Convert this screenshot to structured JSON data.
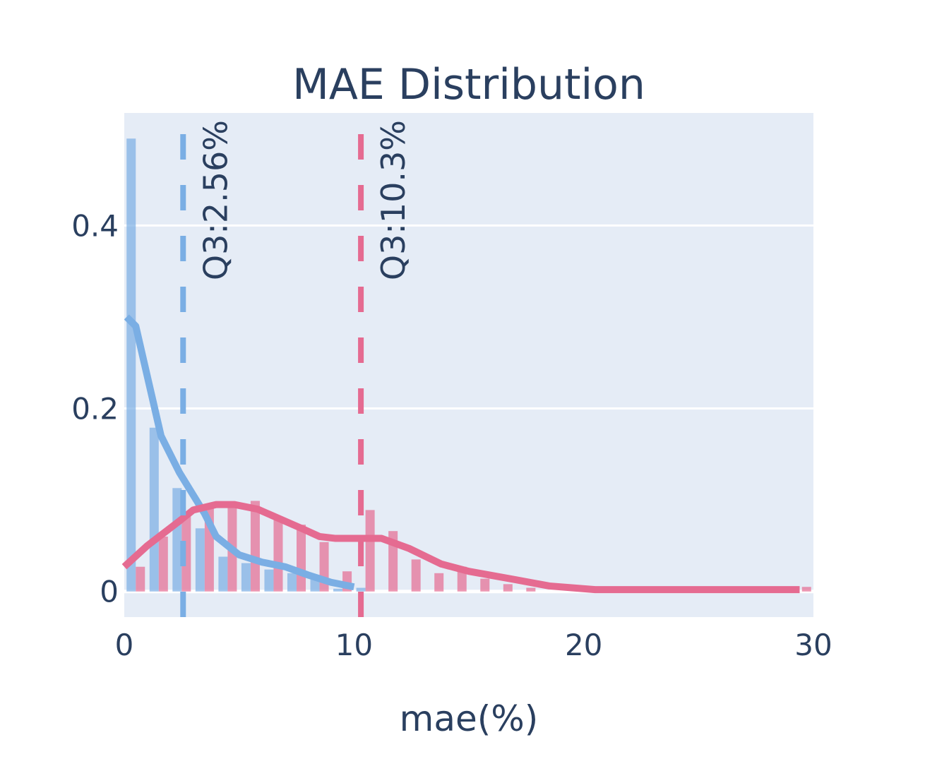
{
  "chart_data": {
    "type": "bar",
    "title": "MAE Distribution",
    "xlabel": "mae(%)",
    "ylabel": "",
    "xlim": [
      0,
      30
    ],
    "ylim": [
      -0.028,
      0.523
    ],
    "x_ticks": [
      0,
      10,
      20,
      30
    ],
    "y_ticks": [
      0,
      0.2,
      0.4
    ],
    "x_tick_labels": [
      "0",
      "10",
      "20",
      "30"
    ],
    "y_tick_labels": [
      "0",
      "0.2",
      "0.4"
    ],
    "grid": true,
    "bin_width": 1,
    "colors": {
      "series_a": "#7aaee4",
      "series_b": "#e56b91",
      "plot_bg": "#e5ecf6",
      "text": "#2a3f5f"
    },
    "series": [
      {
        "histogram": [
          0.495,
          0.179,
          0.113,
          0.069,
          0.038,
          0.031,
          0.024,
          0.02,
          0.013,
          0.003,
          0.004
        ],
        "kde": {
          "x": [
            0.1,
            0.5,
            1.6,
            2.4,
            3.5,
            4.0,
            5,
            6,
            7,
            8,
            9,
            10
          ],
          "y": [
            0.3,
            0.29,
            0.17,
            0.13,
            0.085,
            0.06,
            0.04,
            0.032,
            0.027,
            0.018,
            0.01,
            0.005
          ]
        },
        "q3": 2.56,
        "q3_label": "Q3:2.56%"
      },
      {
        "histogram": [
          0.027,
          0.06,
          0.086,
          0.091,
          0.096,
          0.099,
          0.078,
          0.073,
          0.054,
          0.022,
          0.089,
          0.066,
          0.035,
          0.02,
          0.027,
          0.014,
          0.008,
          0.004,
          0,
          0,
          0,
          0,
          0,
          0,
          0,
          0,
          0,
          0,
          0,
          0.005
        ],
        "kde": {
          "x": [
            0,
            1,
            2.4,
            3,
            4,
            4.8,
            5.8,
            6.8,
            7.8,
            8.5,
            9.2,
            10.5,
            11.2,
            12.4,
            13.8,
            15,
            17,
            18.5,
            20.5,
            29.4
          ],
          "y": [
            0.027,
            0.05,
            0.077,
            0.089,
            0.095,
            0.095,
            0.09,
            0.079,
            0.068,
            0.06,
            0.058,
            0.058,
            0.058,
            0.047,
            0.03,
            0.022,
            0.013,
            0.006,
            0.002,
            0.002
          ]
        },
        "q3": 10.3,
        "q3_label": "Q3:10.3%"
      }
    ]
  }
}
